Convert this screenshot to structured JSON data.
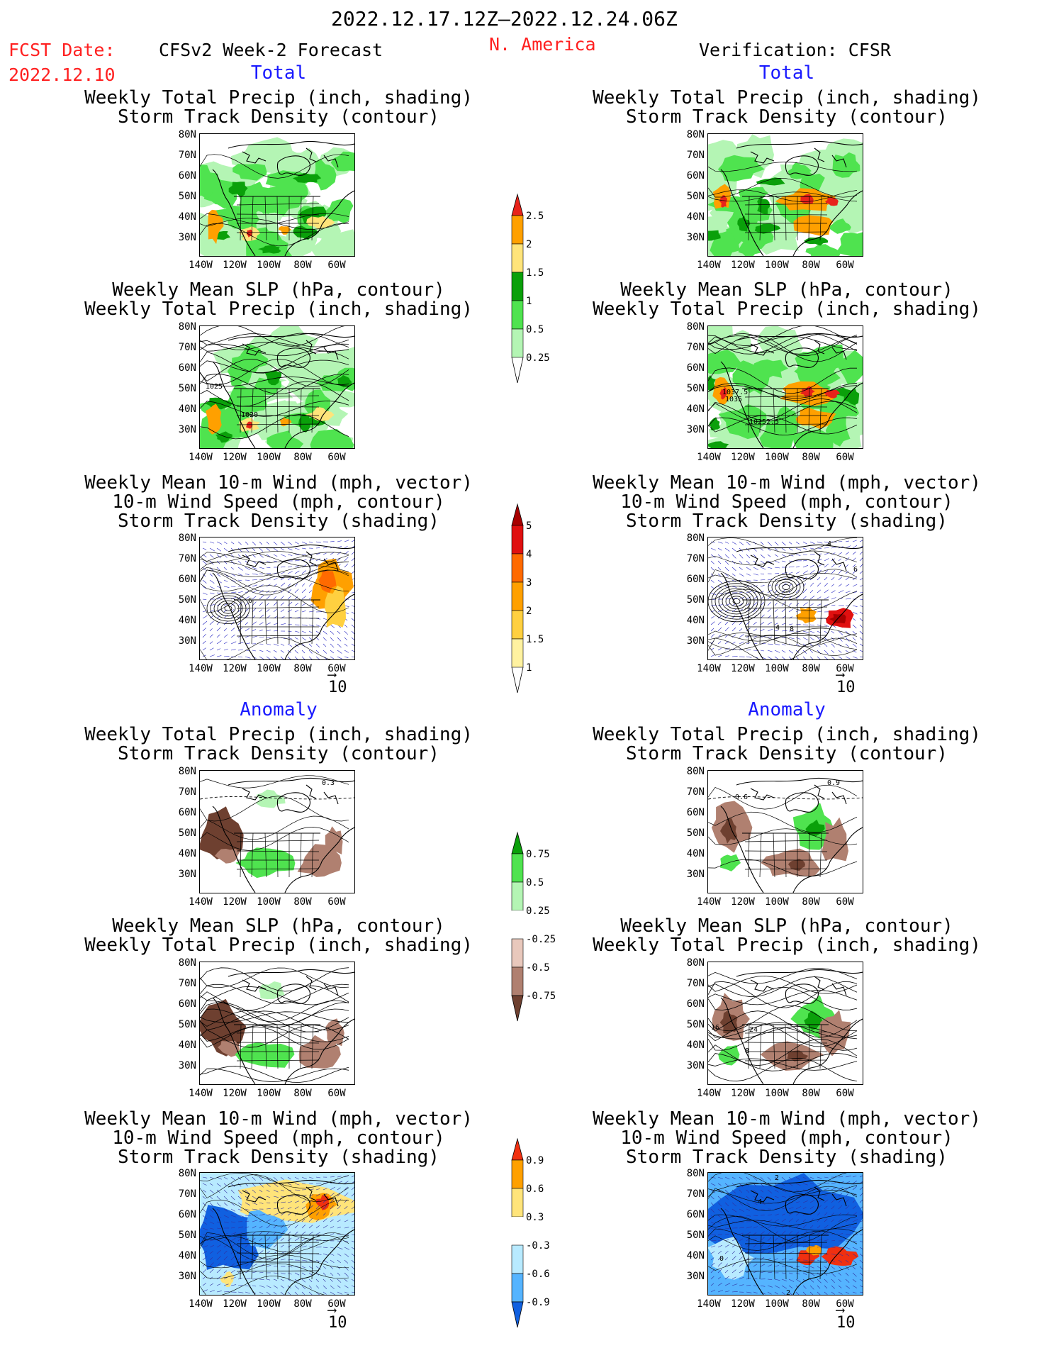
{
  "header": {
    "period": "2022.12.17.12Z–2022.12.24.06Z",
    "fcst_label": "FCST Date:",
    "fcst_date": "2022.12.10",
    "forecast_title": "CFSv2 Week-2 Forecast",
    "region": "N. America",
    "verification_title": "Verification: CFSR"
  },
  "sections": {
    "total": "Total",
    "anomaly": "Anomaly"
  },
  "titles": {
    "precip_storm": [
      "Weekly Total Precip (inch, shading)",
      "Storm Track Density (contour)"
    ],
    "slp_precip": [
      "Weekly Mean SLP (hPa, contour)",
      "Weekly Total Precip (inch, shading)"
    ],
    "wind_storm": [
      "Weekly Mean 10-m Wind (mph, vector)",
      "10-m Wind Speed (mph, contour)",
      "Storm Track Density (shading)"
    ]
  },
  "lat_labels": [
    "80N",
    "70N",
    "60N",
    "50N",
    "40N",
    "30N"
  ],
  "lon_labels": [
    "140W",
    "120W",
    "100W",
    "80W",
    "60W"
  ],
  "vector_ref": "10",
  "contour_labels": {
    "fcst_slp_total": [
      "1025",
      "1020"
    ],
    "cfsr_slp_total": [
      "1037.5",
      "1035",
      "1025",
      "2.5"
    ],
    "fcst_precip_anom": [
      "0.3"
    ],
    "cfsr_precip_anom": [
      "0.6",
      "0.9"
    ],
    "cfsr_slp_anom": [
      "16",
      "24",
      "8"
    ],
    "cfsr_wind_total": [
      "4",
      "6",
      "4",
      "8"
    ],
    "fcst_wind_total": [
      "6"
    ],
    "cfsr_wind_anom": [
      "2",
      "4",
      "0",
      "2"
    ]
  },
  "colorbars": {
    "precip_total": {
      "labels": [
        "2.5",
        "2",
        "1.5",
        "1",
        "0.5",
        "0.25"
      ],
      "colors": [
        "#e8231a",
        "#ffa000",
        "#ffe47a",
        "#0aa00a",
        "#4fe34f",
        "#b4f5b4"
      ]
    },
    "storm_total": {
      "labels": [
        "5",
        "4",
        "3",
        "2",
        "1.5",
        "1"
      ],
      "colors": [
        "#a80000",
        "#e01010",
        "#ff6a00",
        "#ffa000",
        "#ffd040",
        "#fff2a0"
      ]
    },
    "precip_anom": {
      "labels": [
        "0.75",
        "0.5",
        "0.25",
        "-0.25",
        "-0.5",
        "-0.75"
      ],
      "colors": [
        "#0aa00a",
        "#4fe34f",
        "#b4f5b4",
        "#ffffff",
        "#e8c8bc",
        "#b08070",
        "#6e4030"
      ]
    },
    "storm_anom": {
      "labels": [
        "0.9",
        "0.6",
        "0.3",
        "-0.3",
        "-0.6",
        "-0.9"
      ],
      "colors": [
        "#f03010",
        "#ffa000",
        "#ffe47a",
        "#ffffff",
        "#b8eaff",
        "#55b4ff",
        "#1060e0"
      ]
    }
  }
}
